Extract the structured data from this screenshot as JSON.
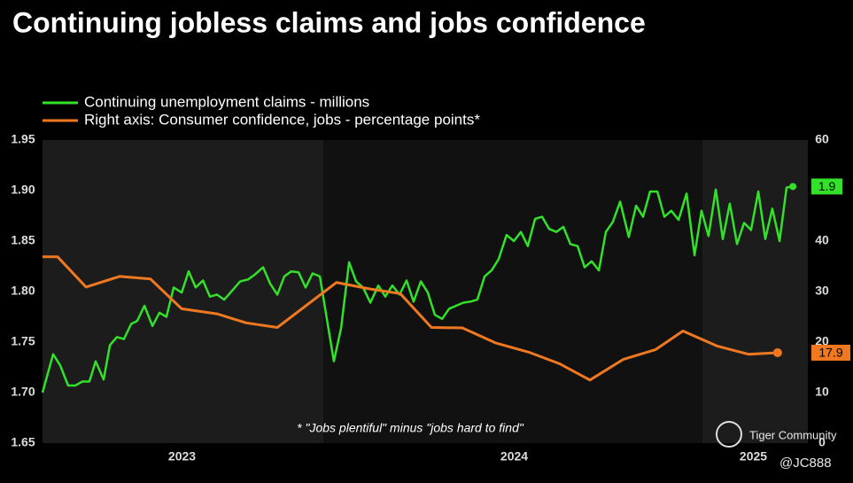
{
  "chart_data": {
    "type": "line",
    "title": "Continuing jobless claims and jobs confidence",
    "footnote": "* \"Jobs plentiful\" minus \"jobs hard to find\"",
    "watermark": "Tiger Community",
    "credit": "@JC888",
    "xlim": [
      2023.08,
      2025.384
    ],
    "xticks": [
      {
        "value": 2023.5,
        "label": "2023"
      },
      {
        "value": 2024.5,
        "label": "2024"
      },
      {
        "value": 2025.22,
        "label": "2025"
      }
    ],
    "ylim": [
      1.65,
      1.95
    ],
    "yticks": [
      {
        "value": 1.65,
        "label": "1.65"
      },
      {
        "value": 1.7,
        "label": "1.70"
      },
      {
        "value": 1.75,
        "label": "1.75"
      },
      {
        "value": 1.8,
        "label": "1.80"
      },
      {
        "value": 1.85,
        "label": "1.85"
      },
      {
        "value": 1.9,
        "label": "1.90"
      },
      {
        "value": 1.95,
        "label": "1.95"
      }
    ],
    "y2lim": [
      0,
      60
    ],
    "y2ticks": [
      0,
      10,
      20,
      30,
      40,
      50,
      60
    ],
    "grid": false,
    "series": [
      {
        "name": "Continuing unemployment claims - millions",
        "color": "#33e02a",
        "x": [
          2023.08,
          2023.112,
          2023.133,
          2023.157,
          2023.179,
          2023.2,
          2023.221,
          2023.24,
          2023.264,
          2023.283,
          2023.304,
          2023.325,
          2023.347,
          2023.365,
          2023.387,
          2023.411,
          2023.432,
          2023.453,
          2023.475,
          2023.499,
          2023.52,
          2023.541,
          2023.563,
          2023.584,
          2023.605,
          2023.627,
          2023.651,
          2023.675,
          2023.699,
          2023.72,
          2023.744,
          2023.765,
          2023.787,
          2023.808,
          2023.829,
          2023.851,
          2023.872,
          2023.893,
          2023.915,
          2023.936,
          2023.957,
          2023.979,
          2024.003,
          2024.024,
          2024.045,
          2024.067,
          2024.091,
          2024.112,
          2024.133,
          2024.155,
          2024.176,
          2024.197,
          2024.219,
          2024.24,
          2024.261,
          2024.283,
          2024.304,
          2024.325,
          2024.347,
          2024.368,
          2024.389,
          2024.411,
          2024.432,
          2024.453,
          2024.477,
          2024.499,
          2024.52,
          2024.541,
          2024.563,
          2024.584,
          2024.605,
          2024.627,
          2024.648,
          2024.669,
          2024.691,
          2024.712,
          2024.733,
          2024.755,
          2024.776,
          2024.797,
          2024.819,
          2024.845,
          2024.867,
          2024.888,
          2024.909,
          2024.931,
          2024.952,
          2024.973,
          2024.995,
          2025.019,
          2025.043,
          2025.064,
          2025.085,
          2025.107,
          2025.128,
          2025.149,
          2025.171,
          2025.192,
          2025.213,
          2025.235,
          2025.256,
          2025.277,
          2025.299,
          2025.32,
          2025.339
        ],
        "values": [
          1.7,
          1.738,
          1.727,
          1.707,
          1.707,
          1.711,
          1.711,
          1.731,
          1.713,
          1.747,
          1.755,
          1.753,
          1.768,
          1.771,
          1.786,
          1.766,
          1.779,
          1.775,
          1.804,
          1.799,
          1.82,
          1.804,
          1.811,
          1.795,
          1.797,
          1.792,
          1.801,
          1.81,
          1.812,
          1.817,
          1.824,
          1.808,
          1.797,
          1.815,
          1.82,
          1.819,
          1.804,
          1.818,
          1.815,
          1.773,
          1.731,
          1.764,
          1.829,
          1.81,
          1.804,
          1.789,
          1.806,
          1.795,
          1.806,
          1.797,
          1.811,
          1.79,
          1.81,
          1.799,
          1.777,
          1.773,
          1.783,
          1.786,
          1.789,
          1.79,
          1.792,
          1.815,
          1.821,
          1.832,
          1.856,
          1.85,
          1.859,
          1.845,
          1.872,
          1.874,
          1.862,
          1.859,
          1.864,
          1.847,
          1.845,
          1.824,
          1.83,
          1.821,
          1.859,
          1.869,
          1.889,
          1.854,
          1.885,
          1.874,
          1.899,
          1.899,
          1.874,
          1.88,
          1.871,
          1.897,
          1.836,
          1.88,
          1.855,
          1.901,
          1.852,
          1.887,
          1.847,
          1.868,
          1.861,
          1.899,
          1.852,
          1.882,
          1.85,
          1.903,
          1.904
        ],
        "value_labels": [
          null,
          null,
          null,
          null,
          null,
          null,
          null,
          null,
          null,
          null,
          null,
          null,
          null,
          null,
          null,
          null,
          null,
          null,
          null,
          null,
          null,
          null,
          null,
          null,
          null,
          null,
          null,
          null,
          null,
          null,
          null,
          null,
          null,
          null,
          null,
          null,
          null,
          null,
          null,
          null,
          null,
          null,
          null,
          null,
          null,
          null,
          null,
          null,
          null,
          null,
          null,
          null,
          null,
          null,
          null,
          null,
          null,
          null,
          null,
          null,
          null,
          null,
          null,
          null,
          null,
          null,
          null,
          null,
          null,
          null,
          null,
          null,
          null,
          null,
          null,
          null,
          null,
          null,
          null,
          null,
          null,
          null,
          null,
          null,
          null,
          null,
          null,
          null,
          null,
          null,
          null,
          null,
          null,
          null,
          null,
          null,
          null,
          null,
          null,
          null,
          null,
          null,
          null,
          null,
          "1.9"
        ]
      },
      {
        "name": "Right axis: Consumer confidence, jobs - percentage points*",
        "color": "#f07820",
        "axis": "y2",
        "x": [
          2023.08,
          2023.125,
          2023.211,
          2023.312,
          2023.405,
          2023.499,
          2023.605,
          2023.693,
          2023.787,
          2023.965,
          2024.067,
          2024.157,
          2024.251,
          2024.344,
          2024.445,
          2024.544,
          2024.637,
          2024.728,
          2024.829,
          2024.925,
          2025.008,
          2025.112,
          2025.205,
          2025.293
        ],
        "values": [
          36.9,
          36.9,
          30.9,
          33.0,
          32.5,
          26.6,
          25.6,
          23.8,
          22.9,
          31.8,
          30.5,
          29.6,
          22.9,
          22.8,
          19.8,
          18.0,
          15.7,
          12.5,
          16.6,
          18.5,
          22.2,
          19.2,
          17.6,
          17.9
        ],
        "value_labels": [
          null,
          null,
          null,
          null,
          null,
          null,
          null,
          null,
          null,
          null,
          null,
          null,
          null,
          null,
          null,
          null,
          null,
          null,
          null,
          null,
          null,
          null,
          null,
          "17.9"
        ]
      }
    ]
  }
}
